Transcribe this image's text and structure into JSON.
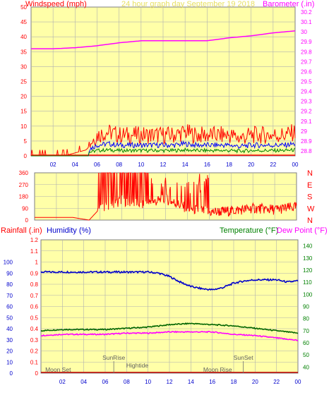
{
  "header": {
    "left_title": "Windspeed (mph)",
    "center_title": "24 hour graph day   September 19 2018",
    "right_title": "Barometer (.in)"
  },
  "colors": {
    "plot_bg": "#FFFFA8",
    "frame": "#7F7F7F",
    "grid": "#B0B0B0",
    "wind_gust": "#FF0000",
    "wind_avg": "#0000FF",
    "wind_low": "#008000",
    "barometer": "#FF00FF",
    "direction": "#FF0000",
    "humidity": "#0000CC",
    "temperature": "#006400",
    "dewpoint": "#FF00FF",
    "rain": "#C00000",
    "axis_red": "#FF0000",
    "axis_blue": "#0000CC",
    "axis_green": "#008000",
    "axis_magenta": "#FF00FF",
    "title_yellow": "#E8E060"
  },
  "chart_data": [
    {
      "id": "wind",
      "type": "line",
      "x_ticks": [
        "02",
        "04",
        "06",
        "08",
        "10",
        "12",
        "14",
        "16",
        "18",
        "20",
        "22",
        "00"
      ],
      "xlim": [
        0,
        24
      ],
      "y_left": {
        "label": "Windspeed (mph)",
        "ticks": [
          0,
          5,
          10,
          15,
          20,
          25,
          30,
          35,
          40,
          45,
          50
        ],
        "range": [
          0,
          50
        ]
      },
      "y_right": {
        "label": "Barometer (.in)",
        "ticks": [
          "28.8",
          "28.9",
          "29",
          "29.1",
          "29.2",
          "29.3",
          "29.4",
          "29.5",
          "29.6",
          "29.7",
          "29.8",
          "29.9",
          "30",
          "30.1",
          "30.2"
        ],
        "range": [
          28.75,
          30.25
        ]
      },
      "grid": true,
      "series": [
        {
          "name": "Barometer (.in)",
          "axis": "right",
          "x": [
            0,
            2,
            4,
            6,
            8,
            10,
            12,
            14,
            16,
            18,
            20,
            22,
            24
          ],
          "values": [
            29.83,
            29.83,
            29.84,
            29.86,
            29.89,
            29.91,
            29.91,
            29.91,
            29.91,
            29.94,
            29.96,
            29.99,
            30.01
          ]
        },
        {
          "name": "Windspeed (mph)",
          "axis": "left",
          "x": [
            0,
            1,
            2,
            3,
            4,
            5,
            6,
            7,
            8,
            9,
            10,
            11,
            12,
            13,
            14,
            15,
            16,
            17,
            18,
            19,
            20,
            21,
            22,
            23,
            24
          ],
          "values": [
            0,
            0,
            0,
            0,
            1,
            2,
            6,
            7,
            6,
            6,
            6,
            6,
            6,
            6,
            7,
            6,
            6,
            6,
            6,
            5,
            6,
            6,
            6,
            6,
            7
          ]
        }
      ]
    },
    {
      "id": "direction",
      "type": "line",
      "xlim": [
        0,
        24
      ],
      "y_left": {
        "ticks": [
          0,
          90,
          180,
          270,
          360
        ],
        "range": [
          0,
          360
        ]
      },
      "y_right": {
        "ticks": [
          "N",
          "W",
          "S",
          "E",
          "N"
        ]
      },
      "grid": true,
      "series": [
        {
          "name": "Wind Direction",
          "x": [
            0,
            3.5,
            5,
            6,
            8,
            10,
            12,
            14,
            16,
            18,
            20,
            22,
            24
          ],
          "values": [
            20,
            20,
            0,
            90,
            150,
            120,
            160,
            90,
            60,
            70,
            90,
            80,
            100
          ]
        }
      ]
    },
    {
      "id": "climate",
      "type": "line",
      "xlim": [
        0,
        24
      ],
      "y_rain": {
        "label": "Rainfall (.in)",
        "ticks": [
          "0",
          "0.1",
          "0.2",
          "0.3",
          "0.4",
          "0.5",
          "0.6",
          "0.7",
          "0.8",
          "0.9",
          "1",
          "1.1",
          "1.2"
        ],
        "range": [
          0,
          1.2
        ]
      },
      "y_hum": {
        "label": "Humidity (%)",
        "ticks": [
          0,
          10,
          20,
          30,
          40,
          50,
          60,
          70,
          80,
          90,
          100
        ],
        "range": [
          0,
          100
        ]
      },
      "y_temp": {
        "label": "Temperature (°F)",
        "ticks": [
          40,
          50,
          60,
          70,
          80,
          90,
          100,
          110,
          120,
          130,
          140
        ],
        "range": [
          35,
          145
        ]
      },
      "dewpoint_label": "Dew Point (°F)",
      "grid": true,
      "series": [
        {
          "name": "Humidity (%)",
          "axis": "hum",
          "x": [
            0,
            2,
            4,
            6,
            8,
            10,
            11,
            12,
            13,
            14,
            15,
            16,
            17,
            18,
            19,
            20,
            22,
            23,
            24
          ],
          "values": [
            91,
            91,
            91,
            91,
            91,
            91,
            90,
            87,
            82,
            78,
            76,
            75,
            77,
            81,
            83,
            84,
            84,
            82,
            83
          ]
        },
        {
          "name": "Temperature (°F)",
          "axis": "temp",
          "x": [
            0,
            2,
            4,
            6,
            8,
            10,
            12,
            14,
            16,
            18,
            20,
            22,
            24
          ],
          "values": [
            70,
            71,
            71,
            71,
            72,
            73,
            75,
            76,
            75,
            74,
            72,
            70,
            68
          ]
        },
        {
          "name": "Dew Point (°F)",
          "axis": "temp",
          "x": [
            0,
            2,
            4,
            6,
            8,
            10,
            12,
            14,
            16,
            18,
            20,
            22,
            24
          ],
          "values": [
            66,
            67,
            67,
            67,
            68,
            68,
            69,
            69,
            69,
            67,
            66,
            64,
            62
          ]
        },
        {
          "name": "Rainfall (.in)",
          "axis": "rain",
          "x": [
            0,
            24
          ],
          "values": [
            0,
            0
          ]
        }
      ],
      "annotations": [
        "Moon Set",
        "SunRise",
        "Hightide",
        "Moon Rise",
        "SunSet"
      ]
    }
  ]
}
